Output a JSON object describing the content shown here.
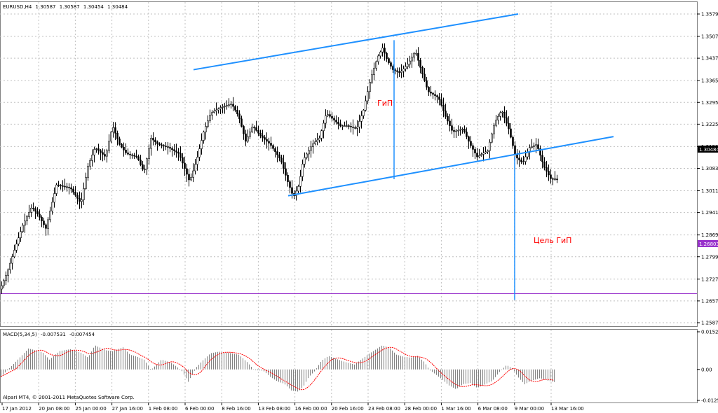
{
  "symbol_header": {
    "symbol": "EURUSD,H4",
    "ohlc": [
      "1.30587",
      "1.30587",
      "1.30454",
      "1.30484"
    ]
  },
  "macd_header": {
    "name": "MACD(5,34,5)",
    "values": [
      "-0.007531",
      "-0.007454"
    ]
  },
  "copyright": "Alpari MT4, © 2001-2011 MetaQuotes Software Corp.",
  "annotations": {
    "pattern_label": "ГиП",
    "target_label": "Цель ГиП",
    "current_price": "1.30484",
    "target_price": "1.26803"
  },
  "colors": {
    "trendline": "#1e90ff",
    "annotation_text": "#ff0000",
    "target_line": "#9932cc",
    "signal_line": "#ff0000",
    "histogram": "#808080",
    "grid": "#c0c0c0",
    "candle": "#000000"
  },
  "chart_data": [
    {
      "type": "candlestick",
      "symbol": "EURUSD",
      "timeframe": "H4",
      "y_ticks": [
        "1.35790",
        "1.35070",
        "1.34370",
        "1.33650",
        "1.32950",
        "1.32250",
        "1.31530",
        "1.30830",
        "1.30110",
        "1.29410",
        "1.28690",
        "1.27990",
        "1.27270",
        "1.26570",
        "1.25870"
      ],
      "ylim": [
        1.2587,
        1.3579
      ],
      "x_ticks": [
        "17 Jan 2012",
        "20 Jan 08:00",
        "25 Jan 00:00",
        "27 Jan 16:00",
        "1 Feb 08:00",
        "6 Feb 00:00",
        "8 Feb 16:00",
        "13 Feb 08:00",
        "16 Feb 00:00",
        "20 Feb 16:00",
        "23 Feb 08:00",
        "28 Feb 00:00",
        "1 Mar 16:00",
        "6 Mar 08:00",
        "9 Mar 00:00",
        "13 Mar 16:00"
      ],
      "path": [
        [
          0,
          1.2695
        ],
        [
          10,
          1.275
        ],
        [
          20,
          1.282
        ],
        [
          32,
          1.29
        ],
        [
          45,
          1.296
        ],
        [
          55,
          1.293
        ],
        [
          65,
          1.289
        ],
        [
          80,
          1.303
        ],
        [
          100,
          1.302
        ],
        [
          115,
          1.297
        ],
        [
          125,
          1.309
        ],
        [
          135,
          1.315
        ],
        [
          150,
          1.312
        ],
        [
          160,
          1.322
        ],
        [
          170,
          1.316
        ],
        [
          180,
          1.313
        ],
        [
          195,
          1.312
        ],
        [
          205,
          1.307
        ],
        [
          215,
          1.318
        ],
        [
          225,
          1.316
        ],
        [
          240,
          1.315
        ],
        [
          255,
          1.313
        ],
        [
          270,
          1.304
        ],
        [
          280,
          1.311
        ],
        [
          290,
          1.32
        ],
        [
          300,
          1.326
        ],
        [
          315,
          1.328
        ],
        [
          330,
          1.329
        ],
        [
          340,
          1.325
        ],
        [
          350,
          1.317
        ],
        [
          360,
          1.322
        ],
        [
          370,
          1.319
        ],
        [
          385,
          1.316
        ],
        [
          400,
          1.311
        ],
        [
          410,
          1.304
        ],
        [
          418,
          1.299
        ],
        [
          426,
          1.303
        ],
        [
          432,
          1.311
        ],
        [
          445,
          1.316
        ],
        [
          455,
          1.318
        ],
        [
          465,
          1.326
        ],
        [
          475,
          1.324
        ],
        [
          485,
          1.322
        ],
        [
          495,
          1.322
        ],
        [
          508,
          1.321
        ],
        [
          518,
          1.327
        ],
        [
          528,
          1.337
        ],
        [
          538,
          1.344
        ],
        [
          545,
          1.347
        ],
        [
          552,
          1.343
        ],
        [
          560,
          1.34
        ],
        [
          570,
          1.339
        ],
        [
          582,
          1.342
        ],
        [
          592,
          1.346
        ],
        [
          600,
          1.34
        ],
        [
          610,
          1.333
        ],
        [
          625,
          1.331
        ],
        [
          635,
          1.325
        ],
        [
          645,
          1.32
        ],
        [
          660,
          1.321
        ],
        [
          670,
          1.316
        ],
        [
          680,
          1.312
        ],
        [
          695,
          1.314
        ],
        [
          705,
          1.323
        ],
        [
          715,
          1.327
        ],
        [
          725,
          1.321
        ],
        [
          735,
          1.312
        ],
        [
          745,
          1.31
        ],
        [
          755,
          1.315
        ],
        [
          765,
          1.316
        ],
        [
          775,
          1.309
        ],
        [
          785,
          1.305
        ],
        [
          795,
          1.3048
        ]
      ],
      "last_price": 1.30484,
      "trendlines": [
        {
          "from": [
            276,
            1.34
          ],
          "to": [
            739,
            1.3579
          ]
        },
        {
          "from": [
            411,
            1.2995
          ],
          "to": [
            875,
            1.3185
          ]
        }
      ],
      "pattern_measure": {
        "x": 562,
        "from": 1.3495,
        "to": 1.3048
      },
      "target_measure": {
        "x": 734,
        "from": 1.312,
        "to": 1.266,
        "target_price": 1.26803
      }
    },
    {
      "type": "bar",
      "name": "MACD(5,34,5)",
      "y_ticks": [
        "0.015261",
        "0.00",
        "-0.012537"
      ],
      "ylim": [
        -0.012537,
        0.015261
      ],
      "profile": [
        [
          0,
          -0.0032
        ],
        [
          20,
          0.0025
        ],
        [
          40,
          0.0085
        ],
        [
          60,
          0.007
        ],
        [
          70,
          0.004
        ],
        [
          85,
          0.0075
        ],
        [
          100,
          0.0082
        ],
        [
          115,
          0.0068
        ],
        [
          125,
          0.0048
        ],
        [
          135,
          0.0098
        ],
        [
          150,
          0.0078
        ],
        [
          160,
          0.0074
        ],
        [
          175,
          0.009
        ],
        [
          185,
          0.006
        ],
        [
          195,
          0.0052
        ],
        [
          205,
          0.004
        ],
        [
          215,
          -0.0002
        ],
        [
          230,
          0.004
        ],
        [
          245,
          0.0025
        ],
        [
          258,
          -0.0002
        ],
        [
          268,
          -0.005
        ],
        [
          280,
          0.001
        ],
        [
          290,
          0.004
        ],
        [
          300,
          0.0066
        ],
        [
          312,
          0.0072
        ],
        [
          325,
          0.0068
        ],
        [
          340,
          0.006
        ],
        [
          352,
          0.003
        ],
        [
          362,
          -0.0002
        ],
        [
          375,
          -0.0005
        ],
        [
          385,
          -0.003
        ],
        [
          395,
          -0.0048
        ],
        [
          405,
          -0.0058
        ],
        [
          415,
          -0.0085
        ],
        [
          425,
          -0.009
        ],
        [
          432,
          -0.007
        ],
        [
          440,
          -0.003
        ],
        [
          448,
          -0.0008
        ],
        [
          458,
          0.0035
        ],
        [
          468,
          0.0055
        ],
        [
          480,
          0.0042
        ],
        [
          492,
          0.003
        ],
        [
          505,
          0.002
        ],
        [
          515,
          0.004
        ],
        [
          525,
          0.0062
        ],
        [
          535,
          0.008
        ],
        [
          545,
          0.0098
        ],
        [
          555,
          0.0088
        ],
        [
          565,
          0.006
        ],
        [
          575,
          0.0052
        ],
        [
          585,
          0.0048
        ],
        [
          595,
          0.0055
        ],
        [
          605,
          0.003
        ],
        [
          612,
          -0.0002
        ],
        [
          620,
          -0.0018
        ],
        [
          630,
          -0.004
        ],
        [
          640,
          -0.0065
        ],
        [
          650,
          -0.008
        ],
        [
          660,
          -0.006
        ],
        [
          670,
          -0.0055
        ],
        [
          680,
          -0.0075
        ],
        [
          692,
          -0.006
        ],
        [
          702,
          -0.0045
        ],
        [
          712,
          -0.001
        ],
        [
          722,
          0.0018
        ],
        [
          730,
          0.0005
        ],
        [
          738,
          -0.003
        ],
        [
          748,
          -0.006
        ],
        [
          758,
          -0.0045
        ],
        [
          770,
          -0.0035
        ],
        [
          780,
          -0.0045
        ],
        [
          792,
          -0.0052
        ]
      ],
      "signal_lag": 8
    }
  ]
}
